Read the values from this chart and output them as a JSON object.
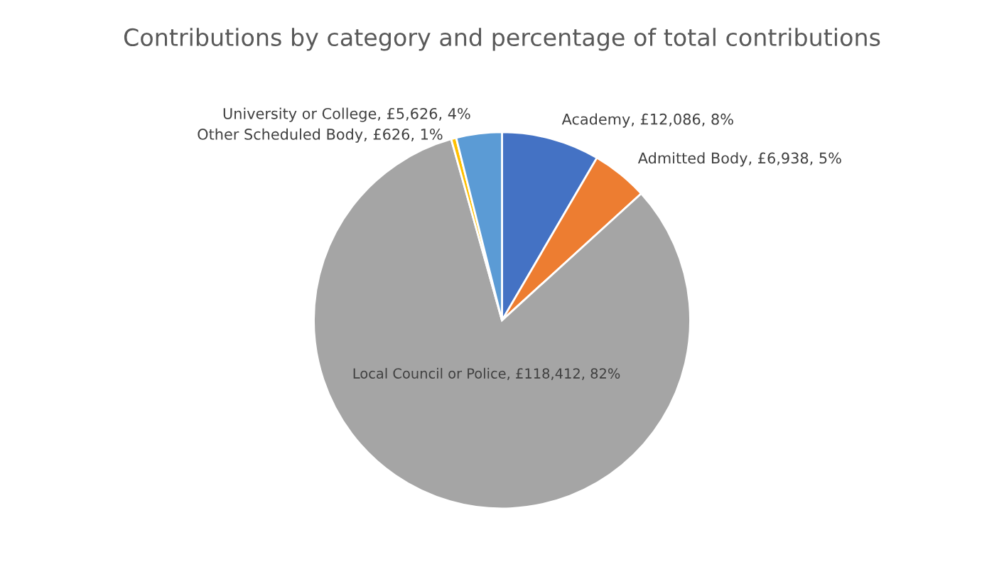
{
  "chart_data": {
    "type": "pie",
    "title": "Contributions by category and percentage of total contributions",
    "categories": [
      "Academy",
      "Admitted Body",
      "Local Council or Police",
      "Other Scheduled Body",
      "University or College"
    ],
    "values": [
      12086,
      6938,
      118412,
      626,
      5626
    ],
    "value_labels": [
      "£12,086, 8%",
      "£6,938, 5%",
      "£118,412, 82%",
      "£626, 1%",
      "£5,626, 4%"
    ],
    "colors": [
      "#4472c4",
      "#ed7d31",
      "#a5a5a5",
      "#ffc000",
      "#5b9bd5"
    ],
    "legend": false
  }
}
